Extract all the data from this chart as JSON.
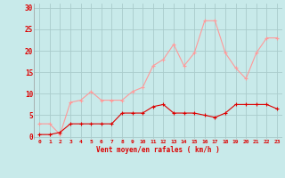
{
  "hours": [
    0,
    1,
    2,
    3,
    4,
    5,
    6,
    7,
    8,
    9,
    10,
    11,
    12,
    13,
    14,
    15,
    16,
    17,
    18,
    19,
    20,
    21,
    22,
    23
  ],
  "wind_avg": [
    0.5,
    0.5,
    1.0,
    3.0,
    3.0,
    3.0,
    3.0,
    3.0,
    5.5,
    5.5,
    5.5,
    7.0,
    7.5,
    5.5,
    5.5,
    5.5,
    5.0,
    4.5,
    5.5,
    7.5,
    7.5,
    7.5,
    7.5,
    6.5
  ],
  "wind_gust": [
    3.0,
    3.0,
    0.5,
    8.0,
    8.5,
    10.5,
    8.5,
    8.5,
    8.5,
    10.5,
    11.5,
    16.5,
    18.0,
    21.5,
    16.5,
    19.5,
    27.0,
    27.0,
    19.5,
    16.0,
    13.5,
    19.5,
    23.0,
    23.0
  ],
  "color_avg": "#dd0000",
  "color_gust": "#ff9999",
  "bg_color": "#c8eaea",
  "grid_color": "#aacccc",
  "xlabel": "Vent moyen/en rafales ( km/h )",
  "yticks": [
    0,
    5,
    10,
    15,
    20,
    25,
    30
  ],
  "ylim": [
    -0.5,
    31
  ],
  "xlim": [
    -0.5,
    23.5
  ]
}
